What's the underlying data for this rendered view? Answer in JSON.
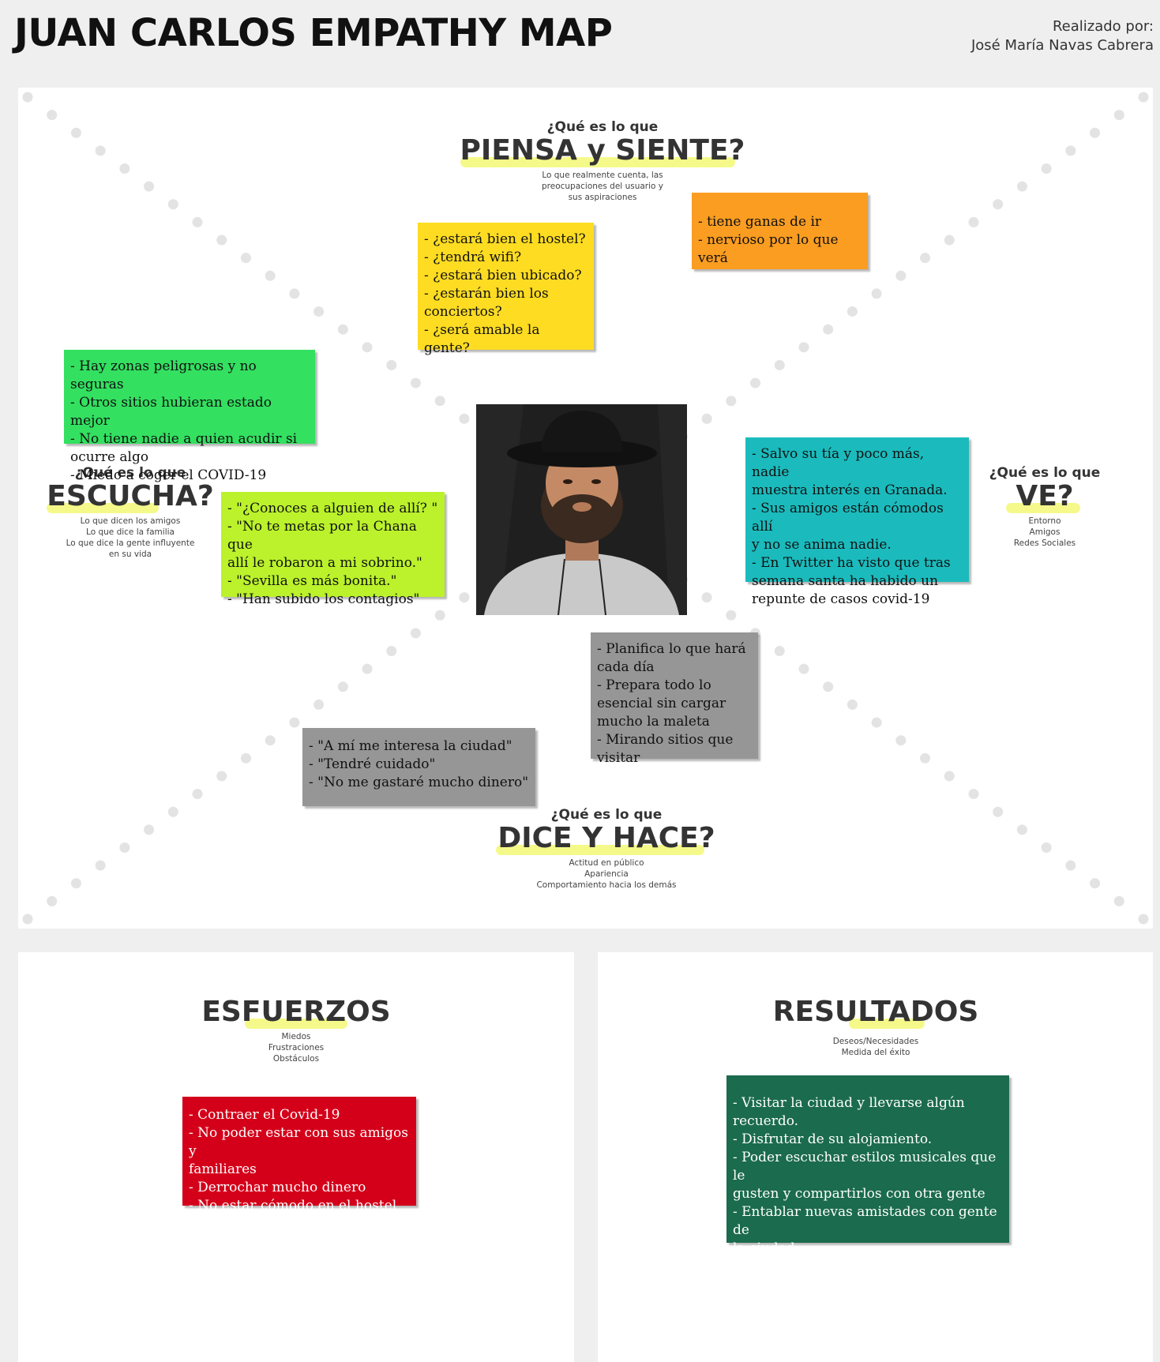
{
  "header": {
    "title": "JUAN CARLOS EMPATHY MAP",
    "author_label": "Realizado por:",
    "author_name": "José María Navas Cabrera"
  },
  "sections": {
    "piensa": {
      "question": "¿Qué es lo que",
      "title": "PIENSA y SIENTE?",
      "subtitle": [
        "Lo que realmente cuenta, las",
        "preocupaciones del usuario y",
        "sus aspiraciones"
      ]
    },
    "escucha": {
      "question": "¿Qué es lo que",
      "title": "ESCUCHA?",
      "subtitle": [
        "Lo que dicen los amigos",
        "Lo que dice la familia",
        "Lo que dice la gente influyente",
        "en su vida"
      ]
    },
    "ve": {
      "question": "¿Qué es lo que",
      "title": "VE?",
      "subtitle": [
        "Entorno",
        "Amigos",
        "Redes Sociales"
      ]
    },
    "dice": {
      "question": "¿Qué es lo que",
      "title": "DICE Y HACE?",
      "subtitle": [
        "Actitud en público",
        "Apariencia",
        "Comportamiento hacia los demás"
      ]
    },
    "esfuerzos": {
      "title": "ESFUERZOS",
      "subtitle": [
        "Miedos",
        "Frustraciones",
        "Obstáculos"
      ]
    },
    "resultados": {
      "title": "RESULTADOS",
      "subtitle": [
        "Deseos/Necesidades",
        "Medida del éxito"
      ]
    }
  },
  "notes": {
    "yellow": [
      "- ¿estará bien el hostel?",
      "- ¿tendrá wifi?",
      "- ¿estará bien ubicado?",
      "- ¿estarán bien los",
      "conciertos?",
      "- ¿será amable la gente?"
    ],
    "orange": [
      "- tiene ganas de ir",
      "- nervioso por lo que verá"
    ],
    "green": [
      "- Hay zonas peligrosas y no seguras",
      "- Otros sitios hubieran estado mejor",
      "- No tiene nadie a quien acudir si",
      "ocurre algo",
      "- Miedo a coger el COVID-19"
    ],
    "lime": [
      "- \"¿Conoces a alguien de allí? \"",
      "- \"No te metas por la Chana que",
      "allí le robaron a mi sobrino.\"",
      "- \"Sevilla es más bonita.\"",
      "- \"Han subido los contagios\""
    ],
    "teal": [
      "- Salvo su tía y poco más, nadie",
      "muestra interés en Granada.",
      "- Sus amigos están cómodos allí",
      "y no se anima nadie.",
      "- En Twitter ha visto que tras",
      "semana santa ha habido un",
      "repunte de casos covid-19"
    ],
    "gray_right": [
      "- Planifica lo que hará",
      "cada día",
      "- Prepara todo lo",
      "esencial sin cargar",
      "mucho la maleta",
      "- Mirando sitios que",
      "visitar"
    ],
    "gray_left": [
      "- \"A mí me interesa la ciudad\"",
      "- \"Tendré cuidado\"",
      "- \"No me gastaré mucho dinero\""
    ],
    "red": [
      "- Contraer el Covid-19",
      "- No poder estar con sus amigos y",
      "familiares",
      "- Derrochar mucho dinero",
      "- No estar cómodo en el hostel"
    ],
    "dark_green": [
      "- Visitar la ciudad y llevarse algún",
      "recuerdo.",
      "- Disfrutar de su alojamiento.",
      "- Poder escuchar estilos musicales que le",
      "gusten y compartirlos con otra gente",
      "- Entablar nuevas amistades con gente de",
      "la ciudad."
    ]
  },
  "colors": {
    "yellow": "#fddc22",
    "orange": "#fa9d21",
    "green": "#33e060",
    "lime": "#bbf22b",
    "teal": "#1bbbbd",
    "gray": "#969696",
    "red": "#d4001a",
    "dark_green": "#1b6b4e",
    "highlight": "#f5f98a"
  },
  "photo": {
    "alt": "portrait-photo"
  }
}
